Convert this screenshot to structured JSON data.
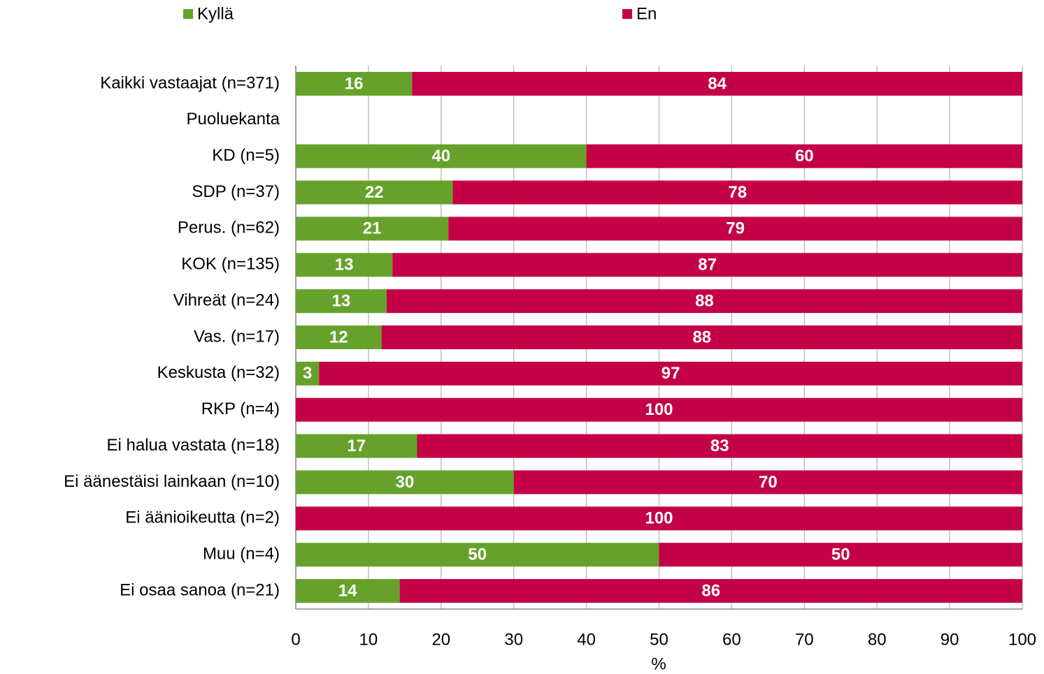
{
  "chart_data": {
    "type": "stacked-bar",
    "orientation": "horizontal",
    "categories": [
      "Kaikki vastaajat (n=371)",
      "Puoluekanta",
      "KD (n=5)",
      "SDP (n=37)",
      "Perus. (n=62)",
      "KOK (n=135)",
      "Vihreät (n=24)",
      "Vas. (n=17)",
      "Keskusta (n=32)",
      "RKP (n=4)",
      "Ei halua vastata (n=18)",
      "Ei äänestäisi lainkaan (n=10)",
      "Ei äänioikeutta (n=2)",
      "Muu (n=4)",
      "Ei osaa sanoa (n=21)"
    ],
    "series": [
      {
        "name": "Kyllä",
        "color": "#66a22b",
        "values": [
          16,
          null,
          40,
          21.6,
          21,
          13.3,
          12.5,
          11.8,
          3.2,
          0,
          16.7,
          30,
          0,
          50,
          14.3
        ],
        "value_labels": [
          "16",
          null,
          "40",
          "22",
          "21",
          "13",
          "13",
          "12",
          "3",
          null,
          "17",
          "30",
          null,
          "50",
          "14"
        ]
      },
      {
        "name": "En",
        "color": "#c40046",
        "values": [
          84,
          null,
          60,
          78.4,
          79,
          86.7,
          87.5,
          88.2,
          96.8,
          100,
          83.3,
          70,
          100,
          50,
          85.7
        ],
        "value_labels": [
          "84",
          null,
          "60",
          "78",
          "79",
          "87",
          "88",
          "88",
          "97",
          "100",
          "83",
          "70",
          "100",
          "50",
          "86"
        ]
      }
    ],
    "xlabel": "%",
    "xlim": [
      0,
      100
    ],
    "xticks": [
      0,
      10,
      20,
      30,
      40,
      50,
      60,
      70,
      80,
      90,
      100
    ],
    "grid": true,
    "legend": "top"
  }
}
